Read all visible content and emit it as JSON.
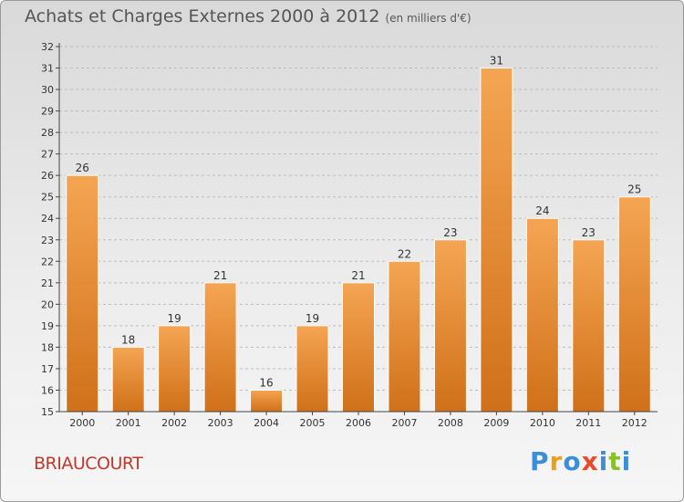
{
  "title": "Achats et Charges Externes 2000 à 2012",
  "unit_note": "(en milliers d'€)",
  "commune": "BRIAUCOURT",
  "brand": {
    "letters": [
      "P",
      "r",
      "o",
      "x",
      "i",
      "t",
      "i"
    ],
    "colors": [
      "#3b8fd9",
      "#e8a21a",
      "#3b8fd9",
      "#e84c2b",
      "#3b8fd9",
      "#8bbf2a",
      "#3b8fd9"
    ]
  },
  "colors": {
    "bar_top": "#f5a552",
    "bar_bottom": "#d0701a",
    "axis": "#444444",
    "grid": "#bbbbbb"
  },
  "chart_data": {
    "type": "bar",
    "categories": [
      "2000",
      "2001",
      "2002",
      "2003",
      "2004",
      "2005",
      "2006",
      "2007",
      "2008",
      "2009",
      "2010",
      "2011",
      "2012"
    ],
    "values": [
      26,
      18,
      19,
      21,
      16,
      19,
      21,
      22,
      23,
      31,
      24,
      23,
      25
    ],
    "ylim": [
      15,
      32
    ],
    "yticks": [
      15,
      16,
      17,
      18,
      19,
      20,
      21,
      22,
      23,
      24,
      25,
      26,
      27,
      28,
      29,
      30,
      31,
      32
    ],
    "grid": "horizontal dashed",
    "data_labels": true
  }
}
